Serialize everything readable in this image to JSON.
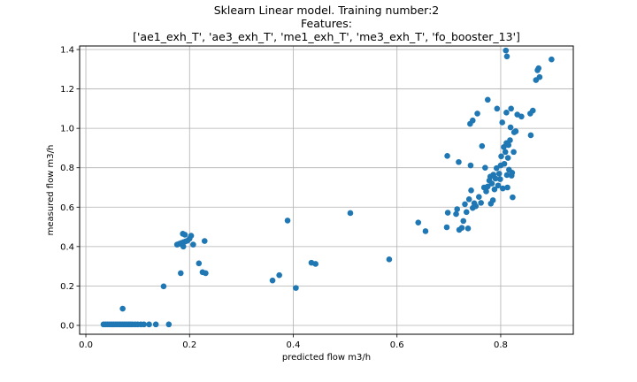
{
  "chart_data": {
    "type": "scatter",
    "title": "Sklearn Linear model. Training number:2",
    "subtitle_lines": [
      "Features:",
      "['ae1_exh_T', 'ae3_exh_T', 'me1_exh_T', 'me3_exh_T', 'fo_booster_13']"
    ],
    "xlabel": "predicted flow m3/h",
    "ylabel": "measured flow m3/h",
    "xlim": [
      -0.012,
      0.94
    ],
    "ylim": [
      -0.045,
      1.418
    ],
    "xticks": [
      0.0,
      0.2,
      0.4,
      0.6,
      0.8
    ],
    "xtick_labels": [
      "0.0",
      "0.2",
      "0.4",
      "0.6",
      "0.8"
    ],
    "yticks": [
      0.0,
      0.2,
      0.4,
      0.6,
      0.8,
      1.0,
      1.2,
      1.4
    ],
    "ytick_labels": [
      "0.0",
      "0.2",
      "0.4",
      "0.6",
      "0.8",
      "1.0",
      "1.2",
      "1.4"
    ],
    "grid": true,
    "marker_color": "#1f77b4",
    "points": [
      [
        0.034,
        0.005
      ],
      [
        0.038,
        0.005
      ],
      [
        0.042,
        0.005
      ],
      [
        0.046,
        0.005
      ],
      [
        0.05,
        0.005
      ],
      [
        0.054,
        0.005
      ],
      [
        0.058,
        0.005
      ],
      [
        0.062,
        0.005
      ],
      [
        0.066,
        0.005
      ],
      [
        0.07,
        0.005
      ],
      [
        0.074,
        0.005
      ],
      [
        0.078,
        0.005
      ],
      [
        0.082,
        0.005
      ],
      [
        0.086,
        0.005
      ],
      [
        0.09,
        0.005
      ],
      [
        0.095,
        0.005
      ],
      [
        0.1,
        0.005
      ],
      [
        0.106,
        0.005
      ],
      [
        0.112,
        0.005
      ],
      [
        0.122,
        0.005
      ],
      [
        0.135,
        0.005
      ],
      [
        0.16,
        0.005
      ],
      [
        0.071,
        0.085
      ],
      [
        0.15,
        0.198
      ],
      [
        0.183,
        0.265
      ],
      [
        0.176,
        0.41
      ],
      [
        0.18,
        0.414
      ],
      [
        0.184,
        0.418
      ],
      [
        0.188,
        0.422
      ],
      [
        0.192,
        0.426
      ],
      [
        0.196,
        0.43
      ],
      [
        0.2,
        0.44
      ],
      [
        0.187,
        0.465
      ],
      [
        0.191,
        0.46
      ],
      [
        0.203,
        0.455
      ],
      [
        0.188,
        0.4
      ],
      [
        0.207,
        0.41
      ],
      [
        0.229,
        0.428
      ],
      [
        0.218,
        0.315
      ],
      [
        0.225,
        0.27
      ],
      [
        0.231,
        0.265
      ],
      [
        0.36,
        0.228
      ],
      [
        0.373,
        0.255
      ],
      [
        0.389,
        0.532
      ],
      [
        0.405,
        0.19
      ],
      [
        0.435,
        0.318
      ],
      [
        0.443,
        0.312
      ],
      [
        0.51,
        0.57
      ],
      [
        0.585,
        0.335
      ],
      [
        0.641,
        0.522
      ],
      [
        0.655,
        0.478
      ],
      [
        0.696,
        0.498
      ],
      [
        0.698,
        0.572
      ],
      [
        0.697,
        0.86
      ],
      [
        0.714,
        0.565
      ],
      [
        0.716,
        0.59
      ],
      [
        0.719,
        0.829
      ],
      [
        0.72,
        0.485
      ],
      [
        0.725,
        0.495
      ],
      [
        0.728,
        0.53
      ],
      [
        0.731,
        0.615
      ],
      [
        0.734,
        0.575
      ],
      [
        0.737,
        0.492
      ],
      [
        0.739,
        0.64
      ],
      [
        0.742,
        0.812
      ],
      [
        0.743,
        0.685
      ],
      [
        0.741,
        1.023
      ],
      [
        0.746,
        1.04
      ],
      [
        0.746,
        0.596
      ],
      [
        0.749,
        0.62
      ],
      [
        0.752,
        0.605
      ],
      [
        0.755,
        1.075
      ],
      [
        0.758,
        0.652
      ],
      [
        0.762,
        0.622
      ],
      [
        0.764,
        0.91
      ],
      [
        0.768,
        0.7
      ],
      [
        0.77,
        0.8
      ],
      [
        0.775,
        1.145
      ],
      [
        0.772,
        0.68
      ],
      [
        0.775,
        0.705
      ],
      [
        0.778,
        0.735
      ],
      [
        0.78,
        0.755
      ],
      [
        0.781,
        0.618
      ],
      [
        0.783,
        0.72
      ],
      [
        0.785,
        0.635
      ],
      [
        0.786,
        0.765
      ],
      [
        0.788,
        0.69
      ],
      [
        0.79,
        0.745
      ],
      [
        0.792,
        0.798
      ],
      [
        0.793,
        1.1
      ],
      [
        0.795,
        0.71
      ],
      [
        0.797,
        0.77
      ],
      [
        0.799,
        0.742
      ],
      [
        0.8,
        0.812
      ],
      [
        0.801,
        0.858
      ],
      [
        0.803,
        1.03
      ],
      [
        0.804,
        0.695
      ],
      [
        0.806,
        0.905
      ],
      [
        0.807,
        0.82
      ],
      [
        0.809,
        0.88
      ],
      [
        0.81,
        1.395
      ],
      [
        0.811,
        1.08
      ],
      [
        0.811,
        0.925
      ],
      [
        0.812,
        1.365
      ],
      [
        0.812,
        0.763
      ],
      [
        0.813,
        0.7
      ],
      [
        0.814,
        0.85
      ],
      [
        0.815,
        0.915
      ],
      [
        0.816,
        0.79
      ],
      [
        0.818,
        0.94
      ],
      [
        0.819,
        1.005
      ],
      [
        0.82,
        1.1
      ],
      [
        0.821,
        0.76
      ],
      [
        0.822,
        0.775
      ],
      [
        0.823,
        0.65
      ],
      [
        0.825,
        0.88
      ],
      [
        0.826,
        0.98
      ],
      [
        0.829,
        0.985
      ],
      [
        0.832,
        1.07
      ],
      [
        0.84,
        1.06
      ],
      [
        0.857,
        1.075
      ],
      [
        0.858,
        0.965
      ],
      [
        0.862,
        1.09
      ],
      [
        0.868,
        1.245
      ],
      [
        0.871,
        1.295
      ],
      [
        0.873,
        1.305
      ],
      [
        0.875,
        1.26
      ],
      [
        0.898,
        1.35
      ]
    ]
  }
}
